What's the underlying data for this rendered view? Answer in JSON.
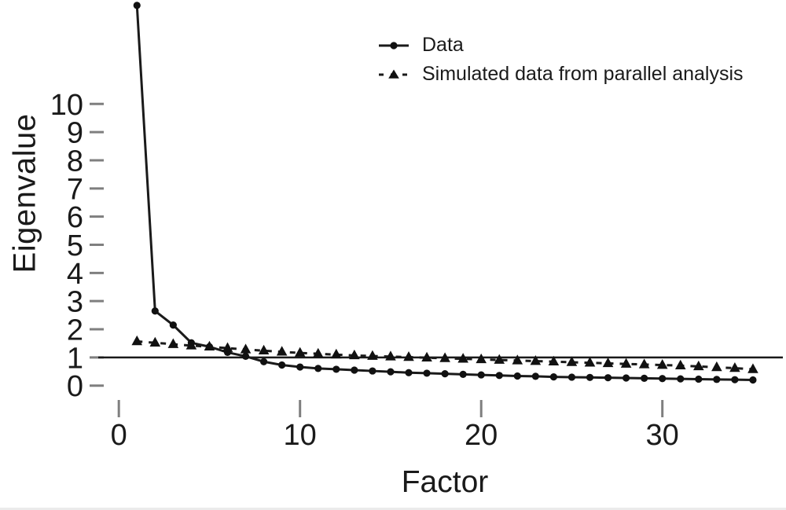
{
  "chart": {
    "y_axis_label": "Eigenvalue",
    "x_axis_label": "Factor",
    "y_ticks": [
      "0",
      "1",
      "2",
      "3",
      "4",
      "5",
      "6",
      "7",
      "8",
      "9",
      "10"
    ],
    "x_ticks": [
      "0",
      "10",
      "20",
      "30"
    ],
    "legend": {
      "items": [
        {
          "label": "Data",
          "marker": "circle",
          "linestyle": "solid"
        },
        {
          "label": "Simulated data from parallel analysis",
          "marker": "triangle",
          "linestyle": "dashed"
        }
      ]
    },
    "colors": {
      "line": "#1a1a1a",
      "marker": "#111111",
      "tick": "#7f7f7f",
      "text": "#1a1a1a",
      "bottom_edge": "#ebebeb"
    }
  },
  "chart_data": {
    "type": "line",
    "title": "",
    "xlabel": "Factor",
    "ylabel": "Eigenvalue",
    "xlim": [
      0,
      36.5
    ],
    "ylim": [
      0,
      13.7
    ],
    "x_tick_values": [
      0,
      10,
      20,
      30
    ],
    "y_tick_values": [
      0,
      1,
      2,
      3,
      4,
      5,
      6,
      7,
      8,
      9,
      10
    ],
    "grid": false,
    "legend_position": "top-center",
    "reference_line": {
      "y": 1,
      "orientation": "horizontal"
    },
    "x": [
      1,
      2,
      3,
      4,
      5,
      6,
      7,
      8,
      9,
      10,
      11,
      12,
      13,
      14,
      15,
      16,
      17,
      18,
      19,
      20,
      21,
      22,
      23,
      24,
      25,
      26,
      27,
      28,
      29,
      30,
      31,
      32,
      33,
      34,
      35
    ],
    "series": [
      {
        "name": "Data",
        "marker": "circle",
        "linestyle": "solid",
        "values": [
          13.5,
          2.65,
          2.15,
          1.52,
          1.38,
          1.18,
          1.04,
          0.85,
          0.73,
          0.66,
          0.61,
          0.58,
          0.55,
          0.52,
          0.49,
          0.46,
          0.44,
          0.42,
          0.4,
          0.38,
          0.36,
          0.34,
          0.33,
          0.31,
          0.3,
          0.29,
          0.28,
          0.27,
          0.26,
          0.25,
          0.24,
          0.23,
          0.22,
          0.21,
          0.2
        ]
      },
      {
        "name": "Simulated data from parallel analysis",
        "marker": "triangle",
        "linestyle": "dashed",
        "values": [
          1.57,
          1.52,
          1.47,
          1.42,
          1.38,
          1.33,
          1.28,
          1.24,
          1.2,
          1.16,
          1.13,
          1.1,
          1.07,
          1.05,
          1.03,
          1.01,
          0.99,
          0.97,
          0.95,
          0.93,
          0.91,
          0.89,
          0.87,
          0.85,
          0.83,
          0.81,
          0.79,
          0.77,
          0.75,
          0.73,
          0.71,
          0.68,
          0.65,
          0.62,
          0.58
        ]
      }
    ]
  }
}
